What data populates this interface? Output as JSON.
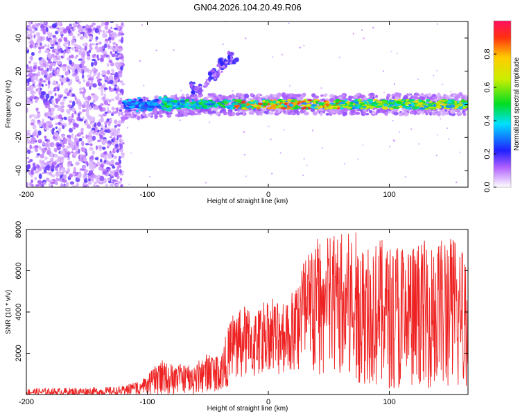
{
  "title": "GN04.2026.104.20.49.R06",
  "colors": {
    "line": "#ee2222",
    "spectrum_low": "#ddc8f5",
    "spectrum_mid": "#6a10e0",
    "spectrum_high": "#ff2a2a"
  },
  "chart_data": [
    {
      "type": "heatmap",
      "xlabel": "Height of straight line (km)",
      "ylabel": "Frequency (Hz)",
      "xlim": [
        -200,
        165
      ],
      "ylim": [
        -50,
        50
      ],
      "xticks": [
        -200,
        -100,
        0,
        100
      ],
      "yticks": [
        -40,
        -20,
        0,
        20,
        40
      ],
      "colorbar": {
        "label": "Normalized spectral amplitude",
        "ticks": [
          "0.0",
          "0.2",
          "0.4",
          "0.6",
          "0.8"
        ],
        "range": [
          0,
          1
        ]
      },
      "features": {
        "noise_region_x": [
          -200,
          -120
        ],
        "main_ridge_frequency": 0,
        "branch_points": [
          [
            -60,
            10
          ],
          [
            -45,
            18
          ],
          [
            -38,
            24
          ],
          [
            -30,
            28
          ]
        ]
      }
    },
    {
      "type": "line",
      "xlabel": "Height of straight line (km)",
      "ylabel": "SNR (10 * v/v)",
      "xlim": [
        -200,
        165
      ],
      "ylim": [
        0,
        8000
      ],
      "xticks": [
        -200,
        -100,
        0,
        100
      ],
      "yticks": [
        2000,
        4000,
        6000,
        8000
      ],
      "envelope": {
        "x": [
          -200,
          -150,
          -120,
          -100,
          -90,
          -80,
          -60,
          -50,
          -40,
          -30,
          -20,
          -10,
          0,
          10,
          20,
          30,
          40,
          60,
          80,
          100,
          120,
          140,
          165
        ],
        "max": [
          300,
          350,
          400,
          900,
          1700,
          1500,
          1500,
          2100,
          1900,
          3900,
          4300,
          4000,
          5000,
          4500,
          5200,
          7000,
          7700,
          8000,
          7800,
          7400,
          7300,
          7700,
          7600
        ],
        "min": [
          0,
          0,
          0,
          0,
          0,
          0,
          0,
          100,
          200,
          500,
          900,
          800,
          1200,
          900,
          1000,
          1000,
          900,
          800,
          500,
          300,
          300,
          300,
          300
        ]
      }
    }
  ]
}
